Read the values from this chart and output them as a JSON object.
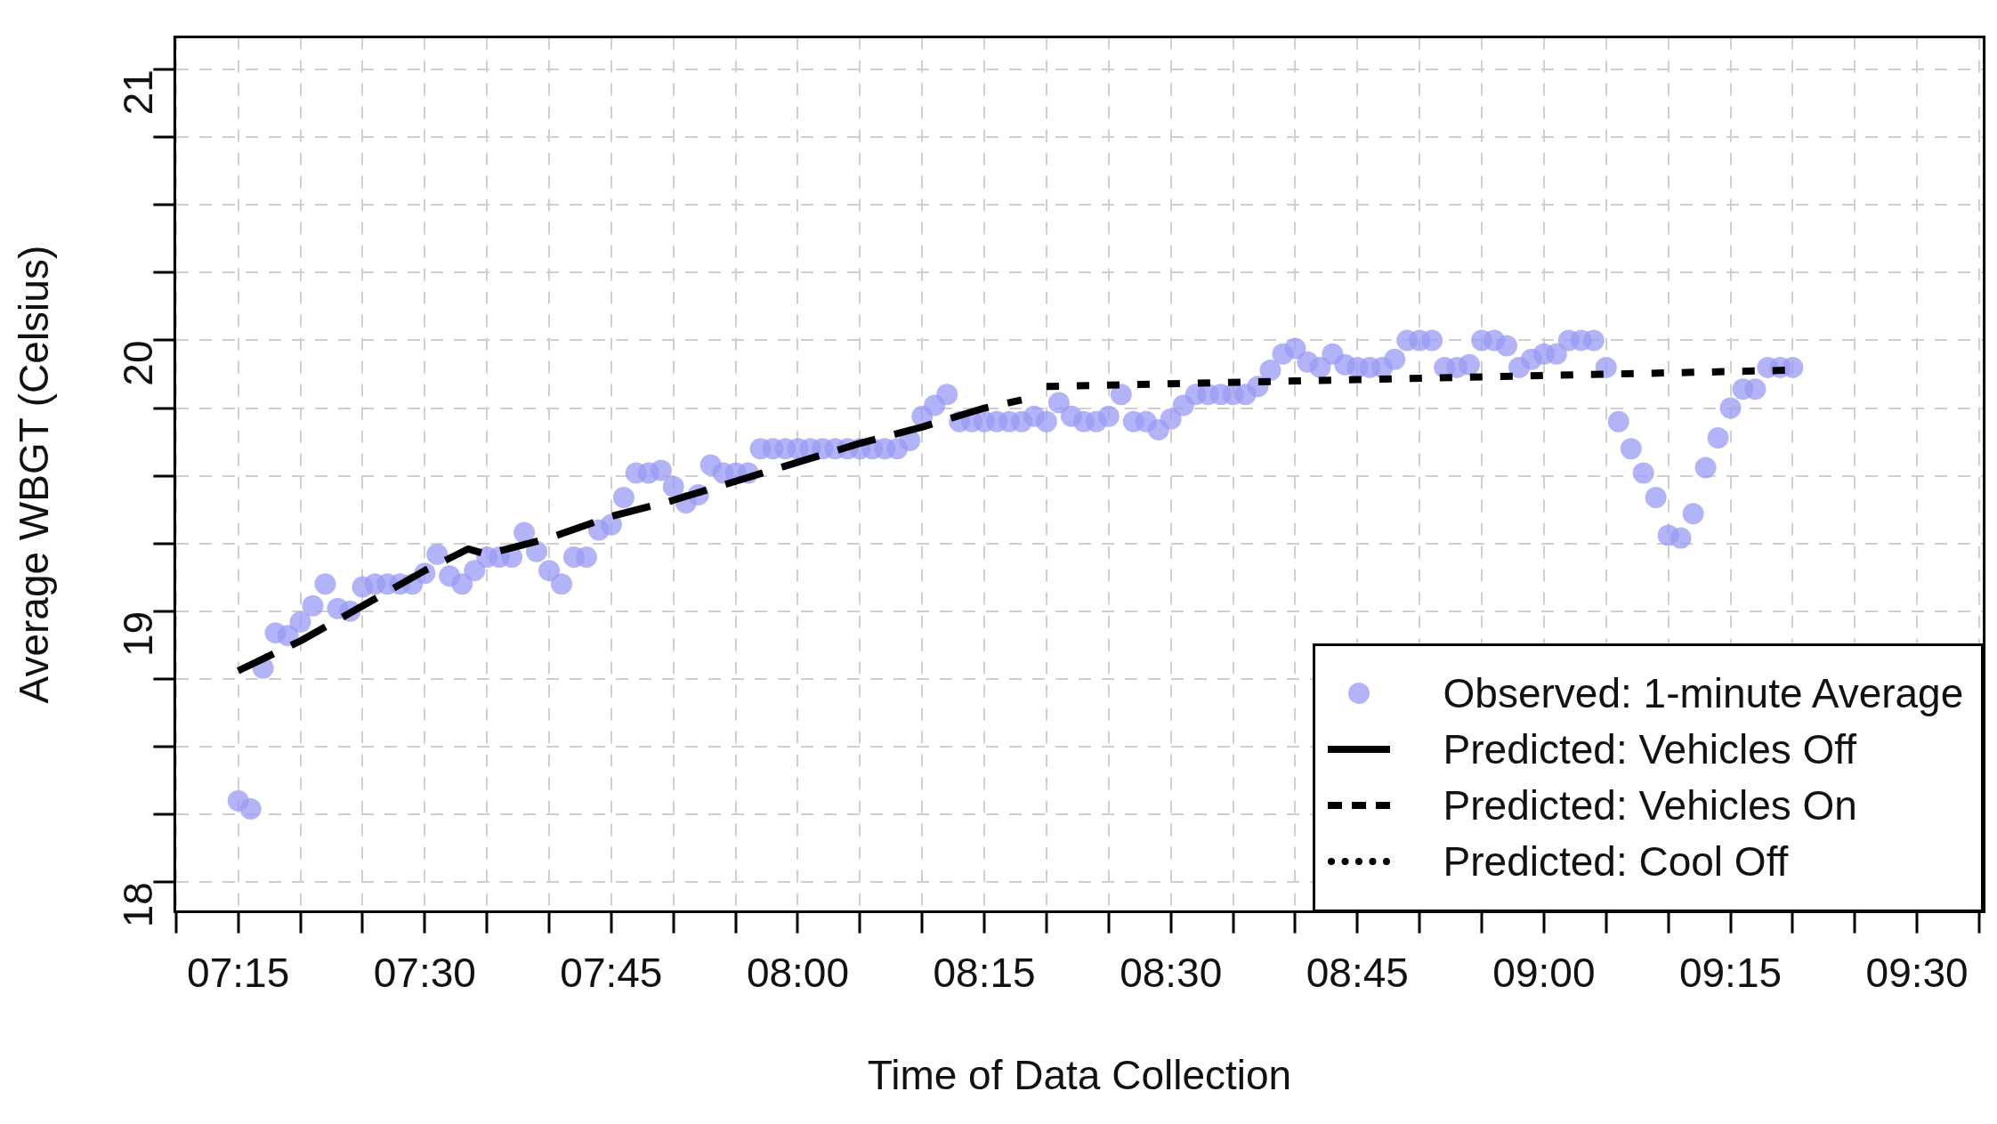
{
  "chart_data": {
    "type": "scatter",
    "xlabel": "Time of Data Collection",
    "ylabel": "Average WBGT (Celsius)",
    "xlim": [
      7.165,
      9.59
    ],
    "ylim": [
      17.89,
      21.12
    ],
    "xticks": [
      {
        "value": 7.1667,
        "label": null
      },
      {
        "value": 7.25,
        "label": "07:15"
      },
      {
        "value": 7.3333,
        "label": null
      },
      {
        "value": 7.4167,
        "label": null
      },
      {
        "value": 7.5,
        "label": "07:30"
      },
      {
        "value": 7.5833,
        "label": null
      },
      {
        "value": 7.6667,
        "label": null
      },
      {
        "value": 7.75,
        "label": "07:45"
      },
      {
        "value": 7.8333,
        "label": null
      },
      {
        "value": 7.9167,
        "label": null
      },
      {
        "value": 8,
        "label": "08:00"
      },
      {
        "value": 8.0833,
        "label": null
      },
      {
        "value": 8.1667,
        "label": null
      },
      {
        "value": 8.25,
        "label": "08:15"
      },
      {
        "value": 8.3333,
        "label": null
      },
      {
        "value": 8.4167,
        "label": null
      },
      {
        "value": 8.5,
        "label": "08:30"
      },
      {
        "value": 8.5833,
        "label": null
      },
      {
        "value": 8.6667,
        "label": null
      },
      {
        "value": 8.75,
        "label": "08:45"
      },
      {
        "value": 8.8333,
        "label": null
      },
      {
        "value": 8.9167,
        "label": null
      },
      {
        "value": 9,
        "label": "09:00"
      },
      {
        "value": 9.0833,
        "label": null
      },
      {
        "value": 9.1667,
        "label": null
      },
      {
        "value": 9.25,
        "label": "09:15"
      },
      {
        "value": 9.3333,
        "label": null
      },
      {
        "value": 9.4167,
        "label": null
      },
      {
        "value": 9.5,
        "label": "09:30"
      },
      {
        "value": 9.5833,
        "label": null
      }
    ],
    "yticks": [
      18,
      {
        "value": 18.25,
        "label": null
      },
      {
        "value": 18.5,
        "label": null
      },
      {
        "value": 18.75,
        "label": null
      },
      19,
      {
        "value": 19.25,
        "label": null
      },
      {
        "value": 19.5,
        "label": null
      },
      {
        "value": 19.75,
        "label": null
      },
      20,
      {
        "value": 20.25,
        "label": null
      },
      {
        "value": 20.5,
        "label": null
      },
      {
        "value": 20.75,
        "label": null
      },
      21
    ],
    "grid": true,
    "legend": "bottom right",
    "series": [
      {
        "name": "Observed: 1-minute Average",
        "marker": "circle",
        "color": "#9a9af5",
        "x": [
          7.25,
          7.2667,
          7.2833,
          7.3,
          7.3167,
          7.3333,
          7.35,
          7.3667,
          7.3833,
          7.4,
          7.4167,
          7.4333,
          7.45,
          7.4667,
          7.4833,
          7.5,
          7.5167,
          7.5333,
          7.55,
          7.5667,
          7.5833,
          7.6,
          7.6167,
          7.6333,
          7.65,
          7.6667,
          7.6833,
          7.7,
          7.7167,
          7.7333,
          7.75,
          7.7667,
          7.7833,
          7.8,
          7.8167,
          7.8333,
          7.85,
          7.8667,
          7.8833,
          7.9,
          7.9167,
          7.9333,
          7.95,
          7.9667,
          7.9833,
          8,
          8.0167,
          8.0333,
          8.05,
          8.0667,
          8.0833,
          8.1,
          8.1167,
          8.1333,
          8.15,
          8.1667,
          8.1833,
          8.2,
          8.2167,
          8.2333,
          8.25,
          8.2667,
          8.2833,
          8.3,
          8.3167,
          8.3333,
          8.35,
          8.3667,
          8.3833,
          8.4,
          8.4167,
          8.4333,
          8.45,
          8.4667,
          8.4833,
          8.5,
          8.5167,
          8.5333,
          8.55,
          8.5667,
          8.5833,
          8.6,
          8.6167,
          8.6333,
          8.65,
          8.6667,
          8.6833,
          8.7,
          8.7167,
          8.7333,
          8.75,
          8.7667,
          8.7833,
          8.8,
          8.8167,
          8.8333,
          8.85,
          8.8667,
          8.8833,
          8.9,
          8.9167,
          8.9333,
          8.95,
          8.9667,
          8.9833,
          9,
          9.0167,
          9.0333,
          9.05,
          9.0667,
          9.0833,
          9.1,
          9.1167,
          9.1333,
          9.15,
          9.1667,
          9.1833,
          9.2,
          9.2167,
          9.2333,
          9.25,
          9.2667,
          9.2833,
          9.3,
          9.3167,
          9.3333
        ],
        "values": [
          18.3,
          18.27,
          18.79,
          18.92,
          18.91,
          18.96,
          19.02,
          19.1,
          19.01,
          19.0,
          19.09,
          19.1,
          19.1,
          19.1,
          19.1,
          19.14,
          19.21,
          19.13,
          19.1,
          19.15,
          19.2,
          19.2,
          19.2,
          19.29,
          19.22,
          19.15,
          19.1,
          19.2,
          19.2,
          19.3,
          19.32,
          19.42,
          19.51,
          19.51,
          19.52,
          19.46,
          19.4,
          19.43,
          19.54,
          19.51,
          19.51,
          19.51,
          19.6,
          19.6,
          19.6,
          19.6,
          19.6,
          19.6,
          19.6,
          19.6,
          19.6,
          19.6,
          19.6,
          19.6,
          19.63,
          19.72,
          19.76,
          19.8,
          19.7,
          19.7,
          19.7,
          19.7,
          19.7,
          19.7,
          19.72,
          19.7,
          19.77,
          19.72,
          19.7,
          19.7,
          19.72,
          19.8,
          19.7,
          19.7,
          19.67,
          19.71,
          19.76,
          19.8,
          19.8,
          19.8,
          19.8,
          19.8,
          19.83,
          19.89,
          19.95,
          19.97,
          19.92,
          19.9,
          19.95,
          19.91,
          19.9,
          19.9,
          19.9,
          19.93,
          20.0,
          20.0,
          20.0,
          19.9,
          19.9,
          19.91,
          20.0,
          20.0,
          19.98,
          19.9,
          19.93,
          19.95,
          19.95,
          20.0,
          20.0,
          20.0,
          19.9,
          19.7,
          19.6,
          19.51,
          19.42,
          19.28,
          19.27,
          19.36,
          19.53,
          19.64,
          19.75,
          19.82,
          19.82,
          19.9,
          19.9,
          19.9
        ]
      },
      {
        "name": "Predicted: Vehicles Off",
        "type": "line",
        "marker": "none",
        "line_style": "solid",
        "color": "#000000"
      },
      {
        "name": "Predicted: Vehicles On",
        "type": "line",
        "marker": "none",
        "line_style": "dashed",
        "color": "#000000",
        "x": [
          7.25,
          7.3333,
          7.4167,
          7.5,
          7.5292,
          7.5583,
          7.5833,
          7.6667,
          7.75,
          7.8333,
          7.9167,
          8,
          8.0833,
          8.1667,
          8.25,
          8.3
        ],
        "values": [
          18.78,
          18.89,
          19.02,
          19.15,
          19.19,
          19.23,
          19.21,
          19.27,
          19.35,
          19.41,
          19.48,
          19.55,
          19.62,
          19.68,
          19.75,
          19.78
        ]
      },
      {
        "name": "Predicted: Cool Off",
        "type": "line",
        "marker": "none",
        "line_style": "dotted",
        "color": "#000000",
        "x": [
          8.3333,
          8.6667,
          9,
          9.3333
        ],
        "values": [
          19.83,
          19.85,
          19.87,
          19.89
        ]
      }
    ]
  }
}
